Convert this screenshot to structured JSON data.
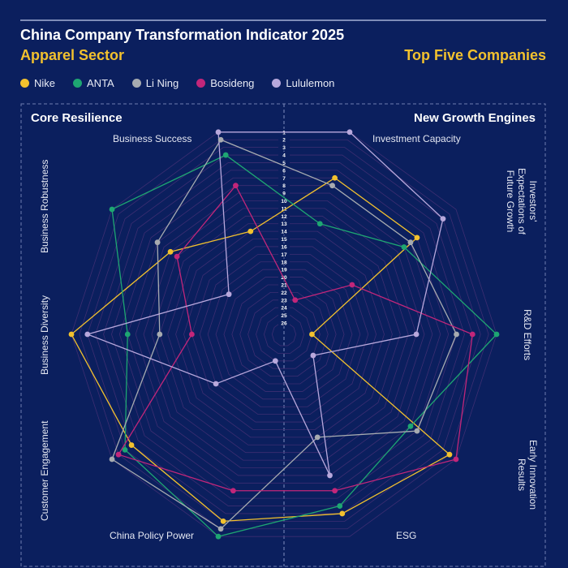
{
  "header": {
    "title": "China Company Transformation Indicator 2025",
    "sector": "Apparel Sector",
    "scope": "Top Five Companies"
  },
  "panels": {
    "left": "Core Resilience",
    "right": "New Growth Engines"
  },
  "chart_data": {
    "type": "radar",
    "scale": "rank",
    "rlim": [
      26,
      1
    ],
    "ticks": [
      1,
      2,
      3,
      4,
      5,
      6,
      7,
      8,
      9,
      10,
      11,
      12,
      13,
      14,
      15,
      16,
      17,
      18,
      19,
      20,
      21,
      22,
      23,
      24,
      25,
      26
    ],
    "axes": [
      "Investment Capacity",
      "Investors' Expectations of Future Growth",
      "R&D Efforts",
      "Early Innovation Results",
      "ESG",
      "China Policy Power",
      "Customer Engagement",
      "Business Diversity",
      "Business Robustness",
      "Business Success"
    ],
    "series": [
      {
        "name": "Nike",
        "color": "#f2c12e",
        "values": [
          7,
          7,
          24,
          2,
          4,
          3,
          4,
          1,
          10,
          14
        ]
      },
      {
        "name": "ANTA",
        "color": "#1ea672",
        "values": [
          13,
          9,
          1,
          8,
          5,
          1,
          3,
          8,
          1,
          4
        ]
      },
      {
        "name": "Li Ning",
        "color": "#a7abb0",
        "values": [
          8,
          8,
          6,
          7,
          14,
          2,
          1,
          12,
          8,
          2
        ]
      },
      {
        "name": "Bosideng",
        "color": "#c2267a",
        "values": [
          23,
          17,
          4,
          1,
          7,
          7,
          2,
          16,
          11,
          8
        ]
      },
      {
        "name": "Lululemon",
        "color": "#b8a8dc",
        "values": [
          1,
          3,
          11,
          23,
          9,
          24,
          17,
          3,
          19,
          1
        ]
      }
    ],
    "legend": "top-left"
  }
}
